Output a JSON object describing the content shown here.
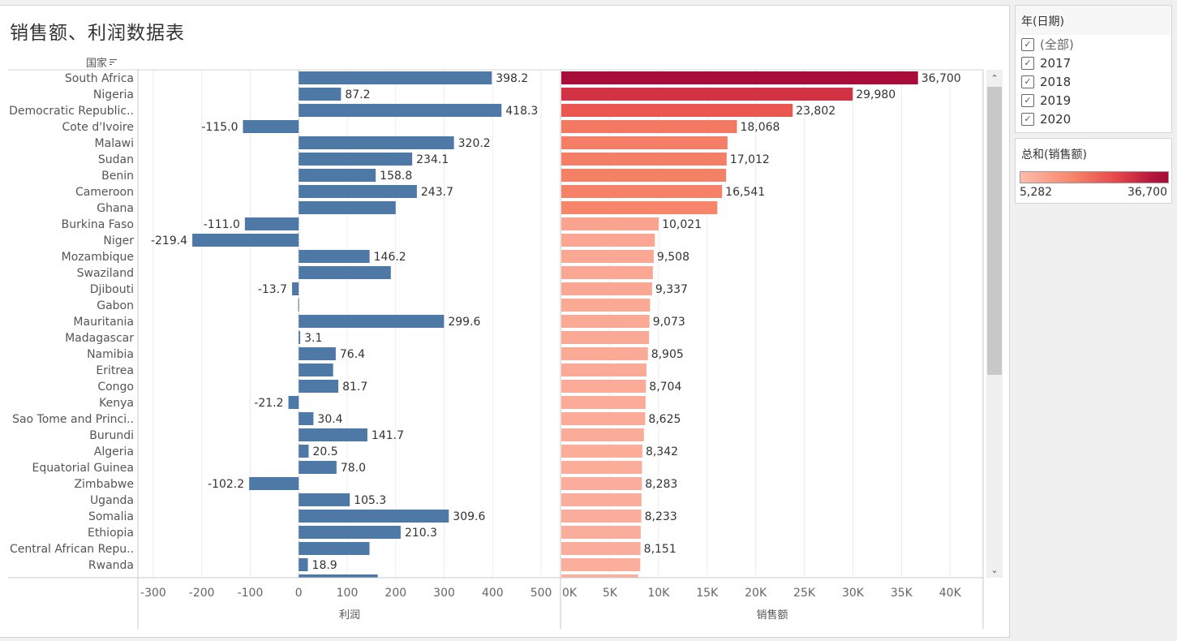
{
  "title": "销售额、利润数据表",
  "column_header": "国家",
  "filter": {
    "title": "年(日期)",
    "options": [
      {
        "label": "(全部)",
        "checked": true
      },
      {
        "label": "2017",
        "checked": true
      },
      {
        "label": "2018",
        "checked": true
      },
      {
        "label": "2019",
        "checked": true
      },
      {
        "label": "2020",
        "checked": true
      }
    ]
  },
  "legend": {
    "title": "总和(销售额)",
    "min_label": "5,282",
    "max_label": "36,700",
    "min": 5282,
    "max": 36700,
    "colors": [
      "#fdbcae",
      "#f6876a",
      "#e8474a",
      "#a80c38"
    ]
  },
  "scrollbar": {
    "up_icon": "⌃",
    "down_icon": "⌄"
  },
  "chart_data": {
    "type": "bar",
    "orientation": "horizontal",
    "title": "销售额、利润数据表",
    "categories": [
      "South Africa",
      "Nigeria",
      "Democratic Republic..",
      "Cote d'Ivoire",
      "Malawi",
      "Sudan",
      "Benin",
      "Cameroon",
      "Ghana",
      "Burkina Faso",
      "Niger",
      "Mozambique",
      "Swaziland",
      "Djibouti",
      "Gabon",
      "Mauritania",
      "Madagascar",
      "Namibia",
      "Eritrea",
      "Congo",
      "Kenya",
      "Sao Tome and Princi..",
      "Burundi",
      "Algeria",
      "Equatorial Guinea",
      "Zimbabwe",
      "Uganda",
      "Somalia",
      "Ethiopia",
      "Central African Repu..",
      "Rwanda",
      ""
    ],
    "series": [
      {
        "name": "利润",
        "color": "#4e79a7",
        "values": [
          398.2,
          87.2,
          418.3,
          -115.0,
          320.2,
          234.1,
          158.8,
          243.7,
          200,
          -111.0,
          -219.4,
          146.2,
          190,
          -13.7,
          -1,
          299.6,
          3.1,
          76.4,
          71,
          81.7,
          -21.2,
          30.4,
          141.7,
          20.5,
          78.0,
          -102.2,
          105.3,
          309.6,
          210.3,
          146,
          18.9,
          163
        ],
        "labels": [
          "398.2",
          "87.2",
          "418.3",
          "-115.0",
          "320.2",
          "234.1",
          "158.8",
          "243.7",
          "",
          "-111.0",
          "-219.4",
          "146.2",
          "",
          "-13.7",
          "",
          "299.6",
          "3.1",
          "76.4",
          "",
          "81.7",
          "-21.2",
          "30.4",
          "141.7",
          "20.5",
          "78.0",
          "-102.2",
          "105.3",
          "309.6",
          "210.3",
          "",
          "18.9",
          ""
        ],
        "xlabel": "利润",
        "ticks": [
          -300,
          -200,
          -100,
          0,
          100,
          200,
          300,
          400,
          500
        ],
        "tick_labels": [
          "-300",
          "-200",
          "-100",
          "0",
          "100",
          "200",
          "300",
          "400",
          "500"
        ],
        "xlim": [
          -330,
          540
        ]
      },
      {
        "name": "销售额",
        "values": [
          36700,
          29980,
          23802,
          18068,
          17100,
          17012,
          16950,
          16541,
          16050,
          10021,
          9620,
          9508,
          9420,
          9337,
          9130,
          9073,
          9030,
          8905,
          8760,
          8704,
          8670,
          8625,
          8500,
          8342,
          8300,
          8283,
          8250,
          8233,
          8170,
          8151,
          8120,
          7900
        ],
        "labels": [
          "36,700",
          "29,980",
          "23,802",
          "18,068",
          "",
          "17,012",
          "",
          "16,541",
          "",
          "10,021",
          "",
          "9,508",
          "",
          "9,337",
          "",
          "9,073",
          "",
          "8,905",
          "",
          "8,704",
          "",
          "8,625",
          "",
          "8,342",
          "",
          "8,283",
          "",
          "8,233",
          "",
          "8,151",
          "",
          ""
        ],
        "xlabel": "销售额",
        "ticks": [
          0,
          5000,
          10000,
          15000,
          20000,
          25000,
          30000,
          35000,
          40000
        ],
        "tick_labels": [
          "0K",
          "5K",
          "10K",
          "15K",
          "20K",
          "25K",
          "30K",
          "35K",
          "40K"
        ],
        "xlim": [
          0,
          43400
        ]
      }
    ],
    "grid": true,
    "legend_position": "right"
  }
}
